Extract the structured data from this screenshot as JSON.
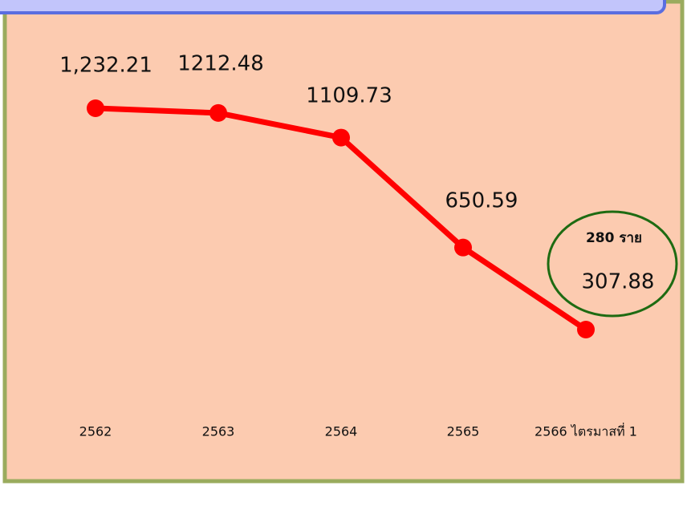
{
  "chart_data": {
    "type": "line",
    "categories": [
      "2562",
      "2563",
      "2564",
      "2565",
      "2566 ไตรมาสที่ 1"
    ],
    "series": [
      {
        "color": "#ff0000",
        "values": [
          1232.21,
          1212.48,
          1109.73,
          650.59,
          307.88
        ],
        "value_labels": [
          "1,232.21",
          "1212.48",
          "1109.73",
          "650.59",
          "307.88"
        ]
      }
    ],
    "annotation": "280 ราย"
  }
}
